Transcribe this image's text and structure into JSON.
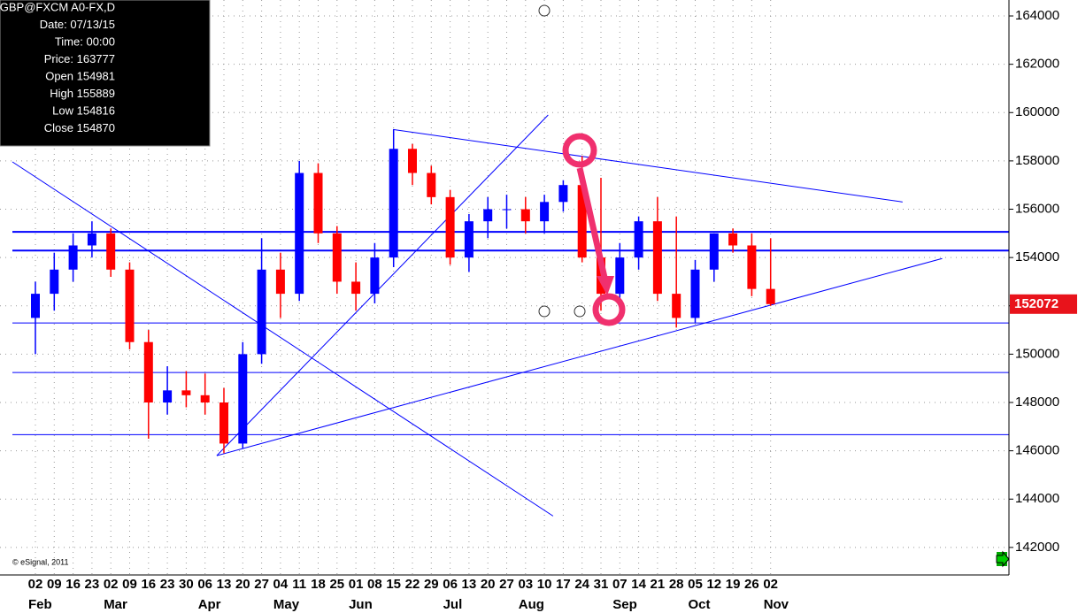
{
  "chart_data": {
    "type": "candlestick",
    "categories": [
      "02",
      "09",
      "16",
      "23",
      "02",
      "09",
      "16",
      "23",
      "30",
      "06",
      "13",
      "20",
      "27",
      "04",
      "11",
      "18",
      "25",
      "01",
      "08",
      "15",
      "22",
      "29",
      "06",
      "13",
      "20",
      "27",
      "03",
      "10",
      "17",
      "24",
      "31",
      "07",
      "14",
      "21",
      "28",
      "05",
      "12",
      "19",
      "26",
      "02"
    ],
    "months": [
      {
        "label": "Feb",
        "index": 0
      },
      {
        "label": "Mar",
        "index": 4
      },
      {
        "label": "Apr",
        "index": 9
      },
      {
        "label": "May",
        "index": 13
      },
      {
        "label": "Jun",
        "index": 17
      },
      {
        "label": "Jul",
        "index": 22
      },
      {
        "label": "Aug",
        "index": 26
      },
      {
        "label": "Sep",
        "index": 31
      },
      {
        "label": "Oct",
        "index": 35
      },
      {
        "label": "Nov",
        "index": 39
      }
    ],
    "open": [
      151500,
      152500,
      153500,
      154500,
      155000,
      153500,
      150500,
      148000,
      148500,
      148300,
      148000,
      146300,
      150000,
      153500,
      152500,
      157500,
      155000,
      153000,
      152500,
      154000,
      158500,
      157500,
      156500,
      154000,
      155500,
      156000,
      156000,
      155500,
      156300,
      157000,
      154000,
      152500,
      154000,
      155500,
      152500,
      151500,
      153500,
      155000,
      154500,
      152700
    ],
    "high": [
      153000,
      154200,
      155000,
      155500,
      155200,
      153800,
      151000,
      149500,
      149300,
      149200,
      148600,
      150500,
      154800,
      154200,
      158000,
      157900,
      155300,
      153800,
      154600,
      159300,
      158700,
      157800,
      156800,
      155800,
      156500,
      156600,
      156500,
      156600,
      157200,
      158200,
      157300,
      154600,
      155700,
      156500,
      155700,
      153900,
      155000,
      155200,
      155000,
      154800
    ],
    "low": [
      150000,
      151800,
      153000,
      154000,
      153200,
      150200,
      146500,
      147500,
      147800,
      147500,
      145900,
      146100,
      149600,
      151500,
      152200,
      154600,
      152500,
      151800,
      152100,
      153600,
      157000,
      156200,
      153700,
      153400,
      154800,
      155200,
      155000,
      155000,
      155900,
      153800,
      151800,
      152000,
      153500,
      152200,
      151100,
      151300,
      153000,
      154200,
      152400,
      152000
    ],
    "close": [
      152500,
      153500,
      154500,
      155000,
      153500,
      150500,
      148000,
      148500,
      148300,
      148000,
      146300,
      150000,
      153500,
      152500,
      157500,
      155000,
      153000,
      152500,
      154000,
      158500,
      157500,
      156500,
      154000,
      155500,
      156000,
      156000,
      155500,
      156300,
      157000,
      154000,
      152500,
      154000,
      155500,
      152500,
      151500,
      153500,
      155000,
      154500,
      152700,
      152072
    ],
    "up_color": "#0000ff",
    "down_color": "#ff0000",
    "ylim": [
      140860,
      164660
    ],
    "yticks": [
      142000,
      144000,
      146000,
      148000,
      150000,
      152000,
      154000,
      156000,
      158000,
      160000,
      162000,
      164000
    ],
    "grid": true,
    "last_price": 152072,
    "hlines": [
      {
        "value": 155060,
        "width": 2
      },
      {
        "value": 154290,
        "width": 2
      },
      {
        "value": 151290,
        "width": 1
      },
      {
        "value": 149240,
        "width": 1
      },
      {
        "value": 146670,
        "width": 1
      }
    ],
    "trendlines": [
      {
        "start": [
          18.97,
          159300
        ],
        "end": [
          46.0,
          156300
        ]
      },
      {
        "start": [
          9.62,
          145800
        ],
        "end": [
          48.1,
          153960
        ]
      },
      {
        "start": [
          9.62,
          145800
        ],
        "end": [
          27.2,
          159900
        ]
      },
      {
        "start": [
          -1.22,
          157960
        ],
        "end": [
          27.46,
          143300
        ]
      }
    ],
    "line_color": "#0000ff",
    "info": [
      "Symbol: GBP@FXCM A0-FX,D",
      "Date: 07/13/15",
      "Time: 00:00",
      "Price: 163777",
      "Open 154981",
      "High 155889",
      "Low 154816",
      "Close 154870"
    ],
    "watermark": "© eSignal, 2011"
  }
}
